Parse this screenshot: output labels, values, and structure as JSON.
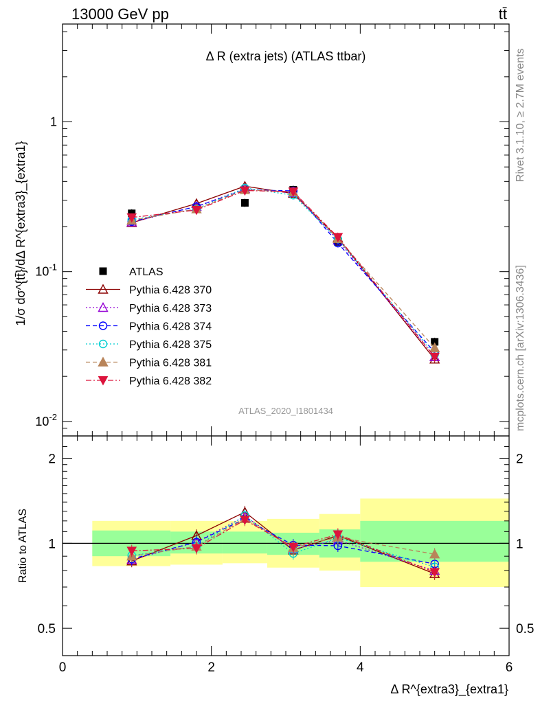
{
  "header": {
    "left": "13000 GeV pp",
    "right": "tt̄"
  },
  "side_labels": {
    "top": "Rivet 3.1.10, ≥ 2.7M events",
    "bottom": "mcplots.cern.ch [arXiv:1306.3436]"
  },
  "chart_data": [
    {
      "type": "line",
      "title": "Δ R (extra jets) (ATLAS ttbar)",
      "watermark": "ATLAS_2020_I1801434",
      "ylabel": "1/σ dσ^{tt̄}/dΔ R^{extra3}_{extra1}",
      "yscale": "log",
      "ylim": [
        0.008,
        4.5
      ],
      "xlim": [
        0,
        6
      ],
      "y_ticks": [
        {
          "value": 1,
          "label": "1"
        },
        {
          "value": 0.1,
          "label": "10^-1"
        },
        {
          "value": 0.01,
          "label": "10^-2"
        }
      ],
      "legend_position": "middle-left",
      "x": [
        0.93,
        1.8,
        2.45,
        3.1,
        3.7,
        5.0
      ],
      "bin_edges": [
        0.4,
        1.45,
        2.15,
        2.75,
        3.45,
        4.0,
        6.0
      ],
      "series": [
        {
          "name": "ATLAS",
          "values": [
            0.245,
            0.268,
            0.288,
            0.352,
            0.158,
            0.034
          ],
          "color": "#000000",
          "marker": "square-filled",
          "dash": "none"
        },
        {
          "name": "Pythia 6.428 370",
          "values": [
            0.212,
            0.285,
            0.372,
            0.332,
            0.168,
            0.026
          ],
          "color": "#8b0000",
          "marker": "triangle-open",
          "dash": "solid"
        },
        {
          "name": "Pythia 6.428 373",
          "values": [
            0.214,
            0.272,
            0.358,
            0.336,
            0.162,
            0.027
          ],
          "color": "#9400d3",
          "marker": "triangle-open",
          "dash": "dotted"
        },
        {
          "name": "Pythia 6.428 374",
          "values": [
            0.216,
            0.272,
            0.352,
            0.346,
            0.155,
            0.029
          ],
          "color": "#0000ff",
          "marker": "circle-open",
          "dash": "dashed"
        },
        {
          "name": "Pythia 6.428 375",
          "values": [
            0.222,
            0.262,
            0.362,
            0.324,
            0.165,
            0.028
          ],
          "color": "#00ced1",
          "marker": "circle-open",
          "dash": "dotted"
        },
        {
          "name": "Pythia 6.428 381",
          "values": [
            0.22,
            0.262,
            0.352,
            0.34,
            0.166,
            0.031
          ],
          "color": "#b8845a",
          "marker": "triangle-filled",
          "dash": "dashed"
        },
        {
          "name": "Pythia 6.428 382",
          "values": [
            0.23,
            0.258,
            0.348,
            0.342,
            0.17,
            0.027
          ],
          "color": "#dc143c",
          "marker": "triangle-down-filled",
          "dash": "dashdot"
        }
      ]
    },
    {
      "type": "line",
      "ylabel": "Ratio to ATLAS",
      "xlabel": "Δ R^{extra3}_{extra1}",
      "yscale": "log",
      "ylim": [
        0.4,
        2.4
      ],
      "xlim": [
        0,
        6
      ],
      "x_ticks": [
        "0",
        "2",
        "4",
        "6"
      ],
      "y_ticks": [
        "0.5",
        "1",
        "2"
      ],
      "reference_line": 1,
      "bands": {
        "bin_edges": [
          0.4,
          1.45,
          2.15,
          2.75,
          3.45,
          4.0,
          6.0
        ],
        "inner": [
          [
            0.9,
            1.11
          ],
          [
            0.92,
            1.1
          ],
          [
            0.92,
            1.1
          ],
          [
            0.91,
            1.09
          ],
          [
            0.89,
            1.12
          ],
          [
            0.86,
            1.2
          ]
        ],
        "outer": [
          [
            0.83,
            1.2
          ],
          [
            0.84,
            1.2
          ],
          [
            0.85,
            1.2
          ],
          [
            0.82,
            1.22
          ],
          [
            0.8,
            1.27
          ],
          [
            0.7,
            1.44
          ]
        ],
        "inner_color": "#99ff99",
        "outer_color": "#ffff99"
      },
      "x": [
        0.93,
        1.8,
        2.45,
        3.1,
        3.7,
        5.0
      ],
      "series": [
        {
          "name": "Pythia 6.428 370",
          "values": [
            0.865,
            1.065,
            1.29,
            0.945,
            1.065,
            0.78
          ],
          "color": "#8b0000"
        },
        {
          "name": "Pythia 6.428 373",
          "values": [
            0.875,
            1.01,
            1.245,
            0.955,
            1.025,
            0.8
          ],
          "color": "#9400d3"
        },
        {
          "name": "Pythia 6.428 374",
          "values": [
            0.88,
            1.01,
            1.22,
            0.985,
            0.98,
            0.845
          ],
          "color": "#0000ff"
        },
        {
          "name": "Pythia 6.428 375",
          "values": [
            0.905,
            0.975,
            1.255,
            0.92,
            1.045,
            0.825
          ],
          "color": "#00ced1"
        },
        {
          "name": "Pythia 6.428 381",
          "values": [
            0.9,
            0.975,
            1.22,
            0.965,
            1.05,
            0.915
          ],
          "color": "#b8845a"
        },
        {
          "name": "Pythia 6.428 382",
          "values": [
            0.94,
            0.96,
            1.21,
            0.97,
            1.075,
            0.79
          ],
          "color": "#dc143c"
        }
      ]
    }
  ]
}
